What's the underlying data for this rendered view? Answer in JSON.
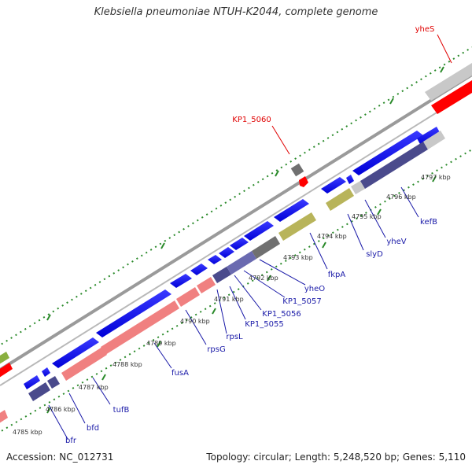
{
  "title": "Klebsiella pneumoniae NTUH-K2044, complete genome",
  "accession": "Accession: NC_012731",
  "topology": "Topology: circular; Length: 5,248,520 bp; Genes: 5,110",
  "colors": {
    "forward_gene": "#0000ee",
    "reverse_gene": "#4a4a8c",
    "rrna_like": "#f08080",
    "olive": "#b8b45a",
    "grey": "#c0c0c0",
    "red_gene": "#ff0000",
    "label_blue": "#1a1aa8",
    "label_red": "#e00000",
    "tick_green": "#2a8a2a"
  },
  "kbp_ticks": [
    "4785 kbp",
    "4786 kbp",
    "4787 kbp",
    "4788 kbp",
    "4789 kbp",
    "4790 kbp",
    "4791 kbp",
    "4792 kbp",
    "4793 kbp",
    "4794 kbp",
    "4795 kbp",
    "4796 kbp",
    "4797 kbp"
  ],
  "gene_labels": [
    "bfr",
    "bfd",
    "tufB",
    "fusA",
    "rpsG",
    "rpsL",
    "KP1_5055",
    "KP1_5056",
    "KP1_5057",
    "yheO",
    "fkpA",
    "slyD",
    "yheV",
    "kefB"
  ],
  "highlight_labels": [
    "KP1_5060",
    "yheS"
  ]
}
